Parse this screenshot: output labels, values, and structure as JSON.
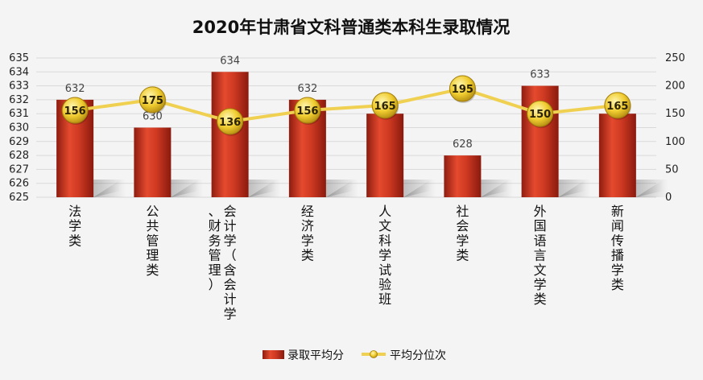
{
  "chart_data": {
    "type": "bar",
    "title": "2020年甘肃省文科普通类本科生录取情况",
    "categories": [
      "法学类",
      "公共管理类",
      "会计学（含会计学、财务管理）",
      "经济学类",
      "人文科学试验班",
      "社会学类",
      "外国语言文学类",
      "新闻传播学类"
    ],
    "series": [
      {
        "name": "录取平均分",
        "type": "bar",
        "axis": "left",
        "values": [
          632,
          630,
          634,
          632,
          631,
          628,
          633,
          631
        ],
        "color": "#c8321e"
      },
      {
        "name": "平均分位次",
        "type": "line",
        "axis": "right",
        "values": [
          156,
          175,
          136,
          156,
          165,
          195,
          150,
          165
        ],
        "color": "#f0d050"
      }
    ],
    "y_left": {
      "min": 625,
      "max": 635,
      "ticks": [
        "625",
        "626",
        "627",
        "628",
        "629",
        "630",
        "631",
        "632",
        "633",
        "634",
        "635"
      ]
    },
    "y_right": {
      "min": 0,
      "max": 250,
      "ticks": [
        "0",
        "50",
        "100",
        "150",
        "200",
        "250"
      ]
    },
    "grid": true,
    "legend": "bottom"
  }
}
